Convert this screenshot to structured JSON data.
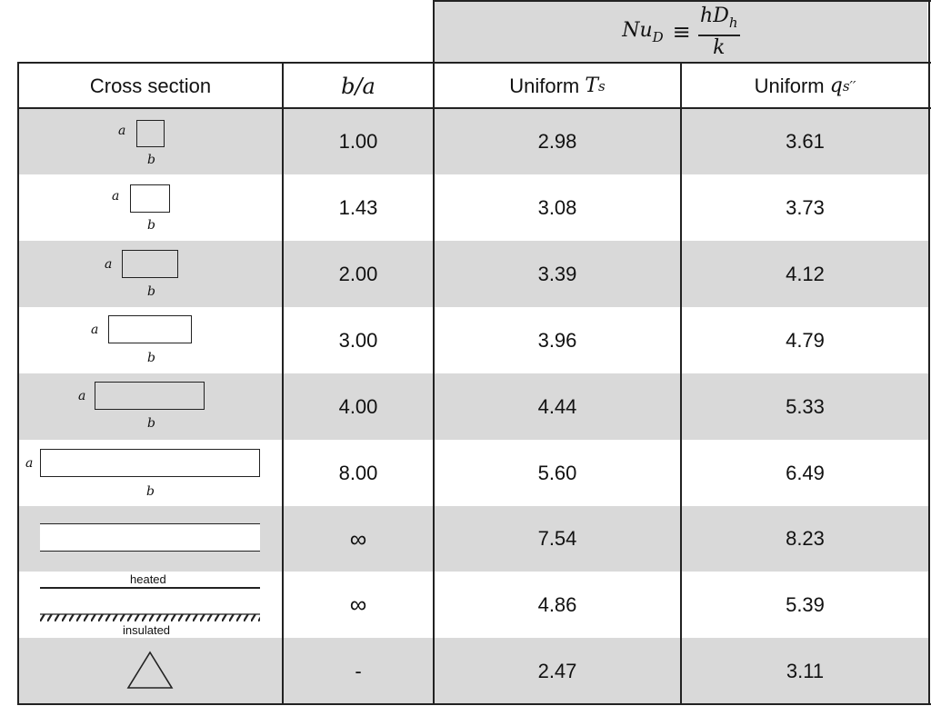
{
  "formula": {
    "lhs": "Nu",
    "lhs_sub": "D",
    "equiv": "≡",
    "numerator": "hD",
    "numerator_sub": "h",
    "denominator": "k"
  },
  "headers": {
    "cross_section": "Cross section",
    "ratio": "b/a",
    "uniform_t_prefix": "Uniform ",
    "uniform_t_var": "T",
    "uniform_t_sub": "s",
    "uniform_q_prefix": "Uniform ",
    "uniform_q_var": "q",
    "uniform_q_sub": "s",
    "uniform_q_sup": "′′"
  },
  "shape_labels": {
    "a": "a",
    "b": "b",
    "heated": "heated",
    "insulated": "insulated"
  },
  "rows": [
    {
      "ratio": "1.00",
      "uniform_t": "2.98",
      "uniform_q": "3.61"
    },
    {
      "ratio": "1.43",
      "uniform_t": "3.08",
      "uniform_q": "3.73"
    },
    {
      "ratio": "2.00",
      "uniform_t": "3.39",
      "uniform_q": "4.12"
    },
    {
      "ratio": "3.00",
      "uniform_t": "3.96",
      "uniform_q": "4.79"
    },
    {
      "ratio": "4.00",
      "uniform_t": "4.44",
      "uniform_q": "5.33"
    },
    {
      "ratio": "8.00",
      "uniform_t": "5.60",
      "uniform_q": "6.49"
    },
    {
      "ratio": "∞",
      "uniform_t": "7.54",
      "uniform_q": "8.23"
    },
    {
      "ratio": "∞",
      "uniform_t": "4.86",
      "uniform_q": "5.39"
    },
    {
      "ratio": "-",
      "uniform_t": "2.47",
      "uniform_q": "3.11"
    }
  ]
}
